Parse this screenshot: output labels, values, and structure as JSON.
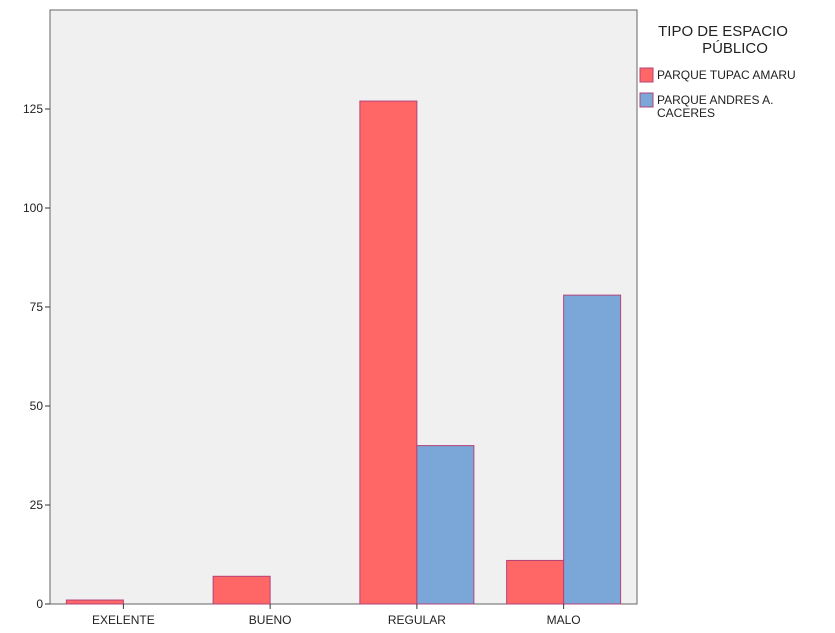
{
  "chart_data": {
    "type": "bar",
    "categories": [
      "EXELENTE",
      "BUENO",
      "REGULAR",
      "MALO"
    ],
    "series": [
      {
        "name": "PARQUE TUPAC AMARU",
        "values": [
          1,
          7,
          127,
          11
        ],
        "color": "#ff6666"
      },
      {
        "name": "PARQUE ANDRES A. CACERES",
        "values": [
          0,
          0,
          40,
          78
        ],
        "color": "#7ba7d8"
      }
    ],
    "legend_title": [
      "TIPO DE ESPACIO",
      "PÚBLICO"
    ],
    "legend_position": "right",
    "ylim": [
      0,
      150
    ],
    "yticks": [
      0,
      25,
      50,
      75,
      100,
      125
    ],
    "grid": false,
    "bar_outline_color": "#b3437a",
    "plot_background": "#f0f0f0"
  }
}
